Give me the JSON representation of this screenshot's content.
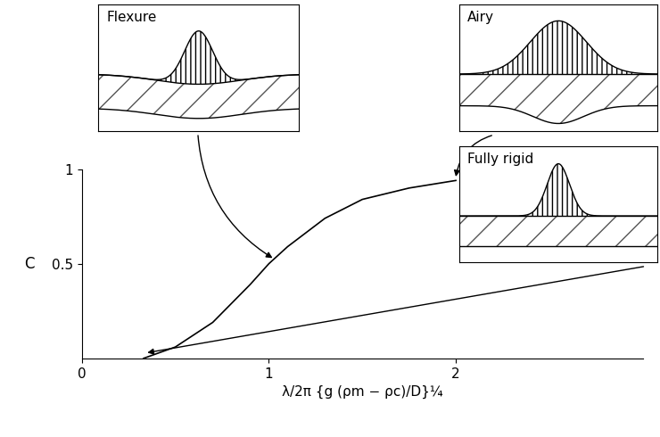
{
  "chart_data": {
    "type": "line",
    "x": [
      0.33,
      0.5,
      0.7,
      0.9,
      1.0,
      1.1,
      1.3,
      1.5,
      1.75,
      2.0
    ],
    "values": [
      0.0,
      0.06,
      0.19,
      0.39,
      0.5,
      0.59,
      0.74,
      0.84,
      0.9,
      0.94
    ],
    "color": "#000000",
    "xlim": [
      0,
      3
    ],
    "ylim": [
      0,
      1
    ],
    "xticks": [
      0,
      1,
      2
    ],
    "yticks": [
      0.5,
      1
    ],
    "x_label": "λ/2π {g (ρm − ρc)/D}¼",
    "y_label": "C",
    "annotations": [
      {
        "text": "Flexure",
        "x": 1.02,
        "y": 0.53
      },
      {
        "text": "Airy",
        "x": 2.0,
        "y": 0.96
      },
      {
        "text": "Fully rigid",
        "x": 0.35,
        "y": 0.03
      }
    ]
  }
}
